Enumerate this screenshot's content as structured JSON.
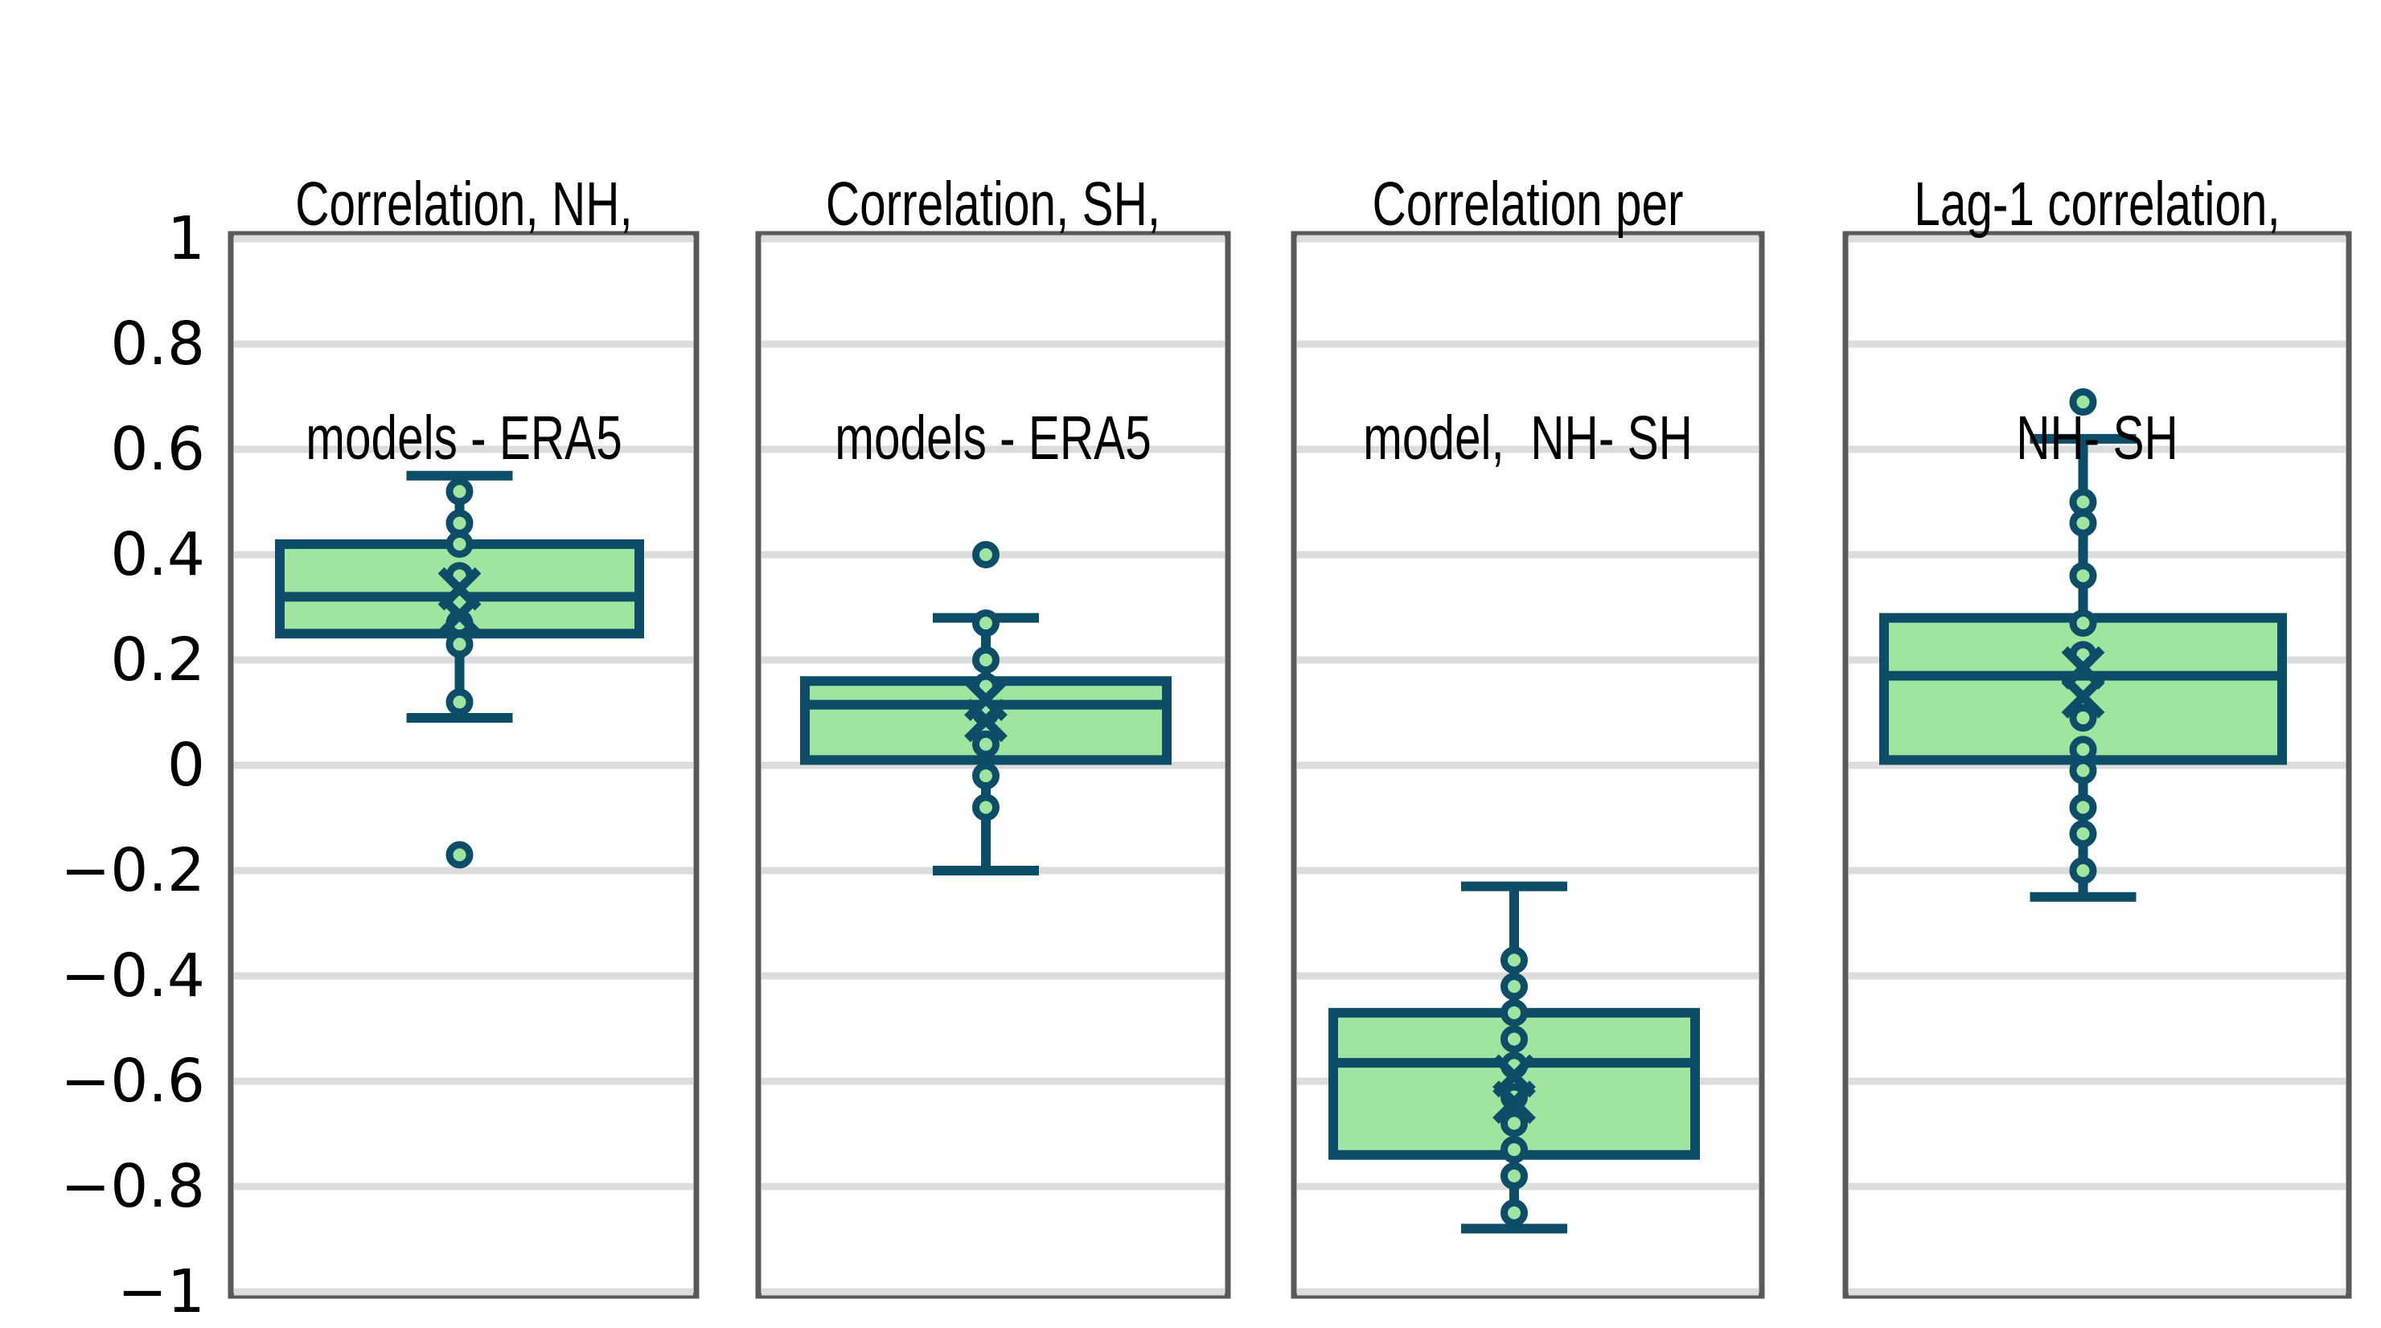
{
  "chart_data": {
    "type": "boxplot",
    "title": "",
    "xlabel": "",
    "ylabel": "",
    "ylim": [
      -1,
      1
    ],
    "grid": true,
    "legend": "none",
    "y_ticks": [
      {
        "label": "1",
        "value": 1.0
      },
      {
        "label": "0.8",
        "value": 0.8
      },
      {
        "label": "0.6",
        "value": 0.6
      },
      {
        "label": "0.4",
        "value": 0.4
      },
      {
        "label": "0.2",
        "value": 0.2
      },
      {
        "label": "0",
        "value": 0.0
      },
      {
        "label": "−0.2",
        "value": -0.2
      },
      {
        "label": "−0.4",
        "value": -0.4
      },
      {
        "label": "−0.6",
        "value": -0.6
      },
      {
        "label": "−0.8",
        "value": -0.8
      },
      {
        "label": "−1",
        "value": -1.0
      }
    ],
    "panels": [
      {
        "title_lines": [
          "Correlation, NH,",
          "models - ERA5"
        ],
        "box": {
          "whisker_low": 0.09,
          "q1": 0.25,
          "median": 0.32,
          "q3": 0.42,
          "whisker_high": 0.55
        },
        "mean_markers": [
          0.335,
          0.285
        ],
        "points": [
          0.52,
          0.46,
          0.42,
          0.36,
          0.31,
          0.27,
          0.23,
          0.12,
          -0.17
        ]
      },
      {
        "title_lines": [
          "Correlation, SH,",
          "models - ERA5"
        ],
        "box": {
          "whisker_low": -0.2,
          "q1": 0.01,
          "median": 0.115,
          "q3": 0.16,
          "whisker_high": 0.28
        },
        "mean_markers": [
          0.125,
          0.085
        ],
        "points": [
          0.4,
          0.27,
          0.2,
          0.15,
          0.1,
          0.04,
          -0.02,
          -0.08
        ]
      },
      {
        "title_lines": [
          "Correlation per",
          "model,  NH- SH"
        ],
        "box": {
          "whisker_low": -0.88,
          "q1": -0.74,
          "median": -0.565,
          "q3": -0.47,
          "whisker_high": -0.23
        },
        "mean_markers": [
          -0.59,
          -0.64
        ],
        "points": [
          -0.37,
          -0.42,
          -0.47,
          -0.52,
          -0.57,
          -0.63,
          -0.68,
          -0.73,
          -0.78,
          -0.85
        ]
      },
      {
        "title_lines": [
          "Lag-1 correlation,",
          "NH- SH"
        ],
        "box": {
          "whisker_low": -0.25,
          "q1": 0.01,
          "median": 0.17,
          "q3": 0.28,
          "whisker_high": 0.62
        },
        "mean_markers": [
          0.185,
          0.13
        ],
        "points": [
          0.69,
          0.5,
          0.46,
          0.36,
          0.27,
          0.21,
          0.09,
          0.03,
          -0.01,
          -0.08,
          -0.13,
          -0.2
        ]
      }
    ],
    "colors": {
      "box_fill": "#9fe49f",
      "line": "#0d4d68",
      "point_fill": "#9fe49f",
      "gridline": "#dcdcdc",
      "panel_border": "#595959",
      "background": "#ffffff",
      "text": "#000000"
    }
  }
}
